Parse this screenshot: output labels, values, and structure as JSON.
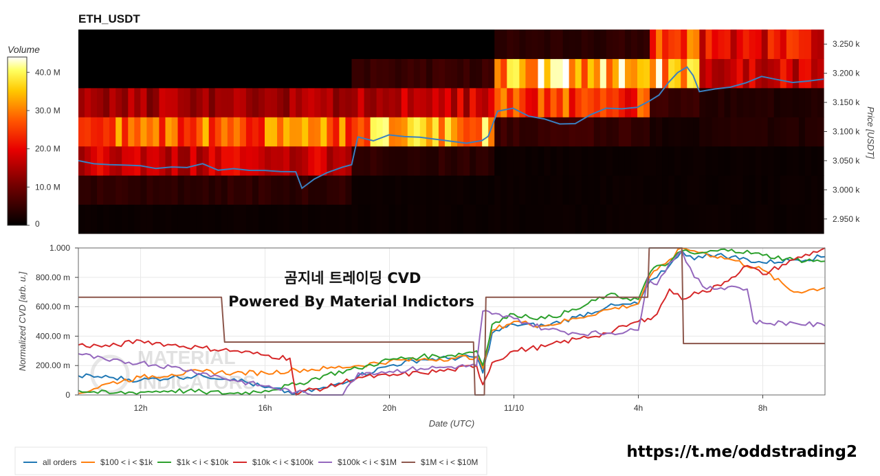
{
  "chart_data": [
    {
      "type": "heatmap",
      "title": "ETH_USDT",
      "ylabel": "Price [USDT]",
      "ylim": [
        2925,
        3275
      ],
      "y_ticks": [
        "2.950 k",
        "3.000 k",
        "3.050 k",
        "3.100 k",
        "3.150 k",
        "3.200 k",
        "3.250 k"
      ],
      "y_tick_values": [
        2950,
        3000,
        3050,
        3100,
        3150,
        3200,
        3250
      ],
      "price_bands": [
        2950,
        3000,
        3050,
        3100,
        3150,
        3200,
        3250
      ],
      "colorbar": {
        "title": "Volume",
        "ticks": [
          "40.0 M",
          "30.0 M",
          "20.0 M",
          "10.0 M",
          "0"
        ],
        "tick_values": [
          40,
          30,
          20,
          10,
          0
        ],
        "range": [
          0,
          44
        ]
      },
      "time_range_hours": [
        10,
        34
      ],
      "segments": [
        {
          "start": 10,
          "end": 18.8,
          "levels": {
            "2950": 1,
            "3000": 4,
            "3050": 17,
            "3100": 28,
            "3150": 14,
            "3200": 0,
            "3250": 0
          }
        },
        {
          "start": 18.8,
          "end": 23.3,
          "levels": {
            "2950": 1,
            "3000": 1,
            "3050": 4,
            "3100": 33,
            "3150": 17,
            "3200": 5,
            "3250": 0
          }
        },
        {
          "start": 23.3,
          "end": 28.4,
          "levels": {
            "2950": 1,
            "3000": 1,
            "3050": 1,
            "3100": 5,
            "3150": 25,
            "3200": 35,
            "3250": 4
          }
        },
        {
          "start": 28.4,
          "end": 30.0,
          "levels": {
            "2950": 1,
            "3000": 1,
            "3050": 1,
            "3100": 2,
            "3150": 5,
            "3200": 35,
            "3250": 25
          }
        },
        {
          "start": 30.0,
          "end": 34,
          "levels": {
            "2950": 1,
            "3000": 1,
            "3050": 1,
            "3100": 3,
            "3150": 3,
            "3200": 18,
            "3250": 20
          }
        }
      ],
      "price_line": {
        "x": [
          10,
          10.5,
          11,
          11.5,
          12,
          12.5,
          13,
          13.5,
          14,
          14.5,
          15,
          15.5,
          16,
          16.5,
          17,
          17.2,
          17.6,
          18,
          18.5,
          18.8,
          19,
          19.5,
          20,
          20.5,
          21,
          21.5,
          22,
          22.5,
          23,
          23.2,
          23.5,
          24,
          24.5,
          25,
          25.5,
          26,
          26.5,
          27,
          27.5,
          28,
          28.4,
          28.7,
          29,
          29.3,
          29.6,
          29.8,
          30,
          30.5,
          31,
          31.5,
          32,
          32.5,
          33,
          33.5,
          34
        ],
        "y": [
          3050,
          3045,
          3045,
          3042,
          3040,
          3035,
          3038,
          3040,
          3045,
          3035,
          3036,
          3035,
          3035,
          3030,
          3032,
          3001,
          3020,
          3030,
          3040,
          3045,
          3090,
          3085,
          3093,
          3090,
          3090,
          3085,
          3085,
          3080,
          3083,
          3090,
          3135,
          3142,
          3125,
          3120,
          3112,
          3115,
          3130,
          3140,
          3140,
          3140,
          3152,
          3162,
          3185,
          3200,
          3210,
          3195,
          3170,
          3172,
          3175,
          3185,
          3195,
          3188,
          3185,
          3185,
          3190
        ]
      }
    },
    {
      "type": "line",
      "ylabel": "Normalized CVD [arb. u.]",
      "xlabel": "Date (UTC)",
      "ylim": [
        0,
        1
      ],
      "y_ticks": [
        "0",
        "200.00 m",
        "400.00 m",
        "600.00 m",
        "800.00 m",
        "1.000"
      ],
      "y_tick_values": [
        0,
        0.2,
        0.4,
        0.6,
        0.8,
        1.0
      ],
      "x_ticks": [
        "12h",
        "16h",
        "20h",
        "11/10",
        "4h",
        "8h"
      ],
      "x_tick_values": [
        12,
        16,
        20,
        24,
        28,
        32
      ],
      "xlim": [
        10,
        34
      ],
      "series": [
        {
          "name": "all orders",
          "color": "#1f77b4",
          "x": [
            10,
            11,
            12,
            13,
            14,
            15,
            16,
            17,
            18,
            19,
            20,
            21,
            22,
            22.8,
            23,
            23.3,
            24,
            25,
            26,
            27,
            28,
            28.3,
            28.6,
            29,
            29.4,
            29.8,
            30.2,
            31,
            32,
            33,
            34
          ],
          "y": [
            0.13,
            0.12,
            0.1,
            0.12,
            0.13,
            0.11,
            0.05,
            0.01,
            0.05,
            0.13,
            0.2,
            0.24,
            0.25,
            0.26,
            0.15,
            0.42,
            0.48,
            0.47,
            0.53,
            0.6,
            0.62,
            0.75,
            0.8,
            0.88,
            0.98,
            0.92,
            0.96,
            0.94,
            0.9,
            0.92,
            0.94
          ]
        },
        {
          "name": "$100 < i < $1k",
          "color": "#ff7f0e",
          "x": [
            10,
            11,
            12,
            13,
            14,
            15,
            16,
            17,
            18,
            19,
            20,
            21,
            22,
            22.8,
            23,
            23.3,
            24,
            25,
            26,
            27,
            28,
            28.3,
            28.6,
            29,
            29.4,
            29.8,
            30.2,
            31,
            32,
            33,
            34
          ],
          "y": [
            0.01,
            0.08,
            0.12,
            0.14,
            0.16,
            0.15,
            0.15,
            0.17,
            0.18,
            0.2,
            0.23,
            0.24,
            0.25,
            0.26,
            0.18,
            0.44,
            0.5,
            0.47,
            0.52,
            0.58,
            0.62,
            0.78,
            0.85,
            0.92,
            1.0,
            0.98,
            0.96,
            0.92,
            0.85,
            0.7,
            0.73
          ]
        },
        {
          "name": "$1k < i < $10k",
          "color": "#2ca02c",
          "x": [
            10,
            11,
            12,
            13,
            14,
            15,
            16,
            17,
            18,
            19,
            20,
            21,
            22,
            22.8,
            23,
            23.3,
            24,
            25,
            26,
            27,
            28,
            28.3,
            28.6,
            29,
            29.4,
            29.8,
            30.2,
            31,
            32,
            33,
            34
          ],
          "y": [
            0.03,
            0.01,
            0.02,
            0.03,
            0.02,
            0.01,
            0.03,
            0.07,
            0.14,
            0.18,
            0.24,
            0.26,
            0.27,
            0.3,
            0.2,
            0.48,
            0.55,
            0.52,
            0.58,
            0.68,
            0.65,
            0.8,
            0.88,
            0.9,
            0.98,
            0.96,
            0.97,
            0.99,
            0.95,
            0.92,
            0.91
          ]
        },
        {
          "name": "$10k < i < $100k",
          "color": "#d62728",
          "x": [
            10,
            11,
            12,
            13,
            14,
            15,
            16,
            16.8,
            17,
            17.3,
            18,
            19,
            20,
            21,
            22,
            22.8,
            23,
            23.3,
            24,
            25,
            26,
            27,
            28,
            28.3,
            28.6,
            29,
            29.4,
            29.8,
            30.2,
            31,
            31.5,
            32,
            33,
            34
          ],
          "y": [
            0.34,
            0.33,
            0.37,
            0.34,
            0.32,
            0.3,
            0.27,
            0.25,
            0.0,
            0.03,
            0.05,
            0.12,
            0.13,
            0.15,
            0.17,
            0.2,
            0.07,
            0.22,
            0.3,
            0.33,
            0.38,
            0.42,
            0.5,
            0.52,
            0.55,
            0.72,
            0.65,
            0.7,
            0.7,
            0.8,
            0.88,
            0.82,
            0.92,
            1.0
          ]
        },
        {
          "name": "$100k < i < $1M",
          "color": "#9467bd",
          "x": [
            10,
            11,
            12,
            13,
            14,
            15,
            16,
            17,
            17.5,
            18,
            18.5,
            19,
            20,
            21,
            22,
            22.8,
            23,
            23.3,
            24,
            25,
            26,
            27,
            28,
            28.3,
            28.6,
            29,
            29.4,
            29.8,
            30.2,
            31,
            31.5,
            31.7,
            32,
            33,
            34
          ],
          "y": [
            0.28,
            0.23,
            0.22,
            0.19,
            0.15,
            0.1,
            0.06,
            0.02,
            0.0,
            0.0,
            0.0,
            0.15,
            0.16,
            0.18,
            0.19,
            0.2,
            0.57,
            0.55,
            0.52,
            0.45,
            0.42,
            0.42,
            0.44,
            0.8,
            0.75,
            0.9,
            0.98,
            0.8,
            0.72,
            0.74,
            0.72,
            0.5,
            0.49,
            0.49,
            0.47
          ]
        },
        {
          "name": "$1M < i < $10M",
          "color": "#8c564b",
          "x": [
            10,
            14.6,
            14.7,
            22.7,
            22.75,
            23.05,
            23.1,
            28.3,
            28.35,
            29.4,
            29.45,
            34
          ],
          "y": [
            0.665,
            0.665,
            0.36,
            0.36,
            0.0,
            0.0,
            0.665,
            0.665,
            1.0,
            1.0,
            0.35,
            0.35
          ]
        }
      ]
    }
  ],
  "watermark": {
    "line1": "곰지네 트레이딩 CVD",
    "line2": "Powered By Material Indictors",
    "logo_text_1": "MATERIAL",
    "logo_text_2": "INDICATORS"
  },
  "url_text": "https://t.me/oddstrading2"
}
